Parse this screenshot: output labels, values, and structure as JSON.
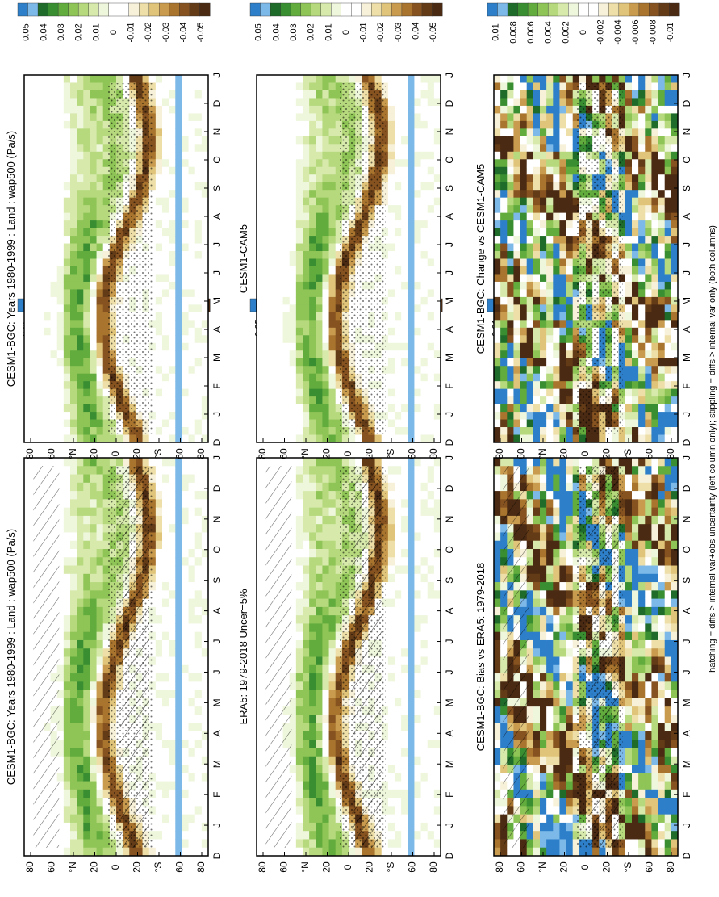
{
  "figure": {
    "footnote": "hatching = diffs > internal var+obs uncertainty (left column only); stippling = diffs > internal var only (both columns)"
  },
  "axes": {
    "months": [
      "D",
      "J",
      "F",
      "M",
      "A",
      "M",
      "J",
      "J",
      "A",
      "S",
      "O",
      "N",
      "D",
      "J"
    ],
    "lat_ticks": [
      "80",
      "60",
      "°N",
      "20",
      "0",
      "20",
      "°S",
      "60",
      "80"
    ]
  },
  "colorbars": {
    "field": [
      "0.05",
      "0.04",
      "0.03",
      "0.02",
      "0.01",
      "0",
      "-0.01",
      "-0.02",
      "-0.03",
      "-0.04",
      "-0.05"
    ],
    "diff": [
      "0.01",
      "0.008",
      "0.006",
      "0.004",
      "0.002",
      "0",
      "-0.002",
      "-0.004",
      "-0.006",
      "-0.008",
      "-0.01"
    ],
    "colors": [
      "#2E7FC9",
      "#7CB8E8",
      "#1E6B2A",
      "#3A8E32",
      "#62AC3E",
      "#8FC457",
      "#B6D97E",
      "#D7EAAC",
      "#EEF6DC",
      "#FFFFFF",
      "#FFFFFF",
      "#F7F1D9",
      "#EEDFA8",
      "#E0C47A",
      "#C89B4E",
      "#A8742E",
      "#855220",
      "#633B17",
      "#4A2A12"
    ]
  },
  "panels": [
    {
      "id": "tl",
      "title": "CESM1-BGC: Years 1980-1999 : Land : wap500 (Pa/s)",
      "kind": "field",
      "hatch": true
    },
    {
      "id": "tr",
      "title": "CESM1-BGC: Years 1980-1999 : Land : wap500 (Pa/s)",
      "kind": "field",
      "hatch": false
    },
    {
      "id": "ml",
      "title": "ERA5: 1979-2018 Uncer=5%",
      "kind": "field",
      "hatch": true
    },
    {
      "id": "mr",
      "title": "CESM1-CAM5",
      "kind": "field",
      "hatch": false
    },
    {
      "id": "bl",
      "title": "CESM1-BGC: Bias vs ERA5: 1979-2018",
      "kind": "diff",
      "hatch": true
    },
    {
      "id": "br",
      "title": "CESM1-BGC: Change vs CESM1-CAM5",
      "kind": "diff",
      "hatch": false
    }
  ],
  "chart_data": [
    {
      "type": "heatmap",
      "title": "CESM1-BGC: Years 1980-1999 : Land : wap500 (Pa/s)",
      "x": [
        "D",
        "J",
        "F",
        "M",
        "A",
        "M",
        "J",
        "J",
        "A",
        "S",
        "O",
        "N",
        "D",
        "J"
      ],
      "y_ticks": [
        "80",
        "60",
        "°N",
        "20",
        "0",
        "20",
        "°S",
        "60",
        "80"
      ],
      "colorbar": [
        0.05,
        0.04,
        0.03,
        0.02,
        0.01,
        0,
        -0.01,
        -0.02,
        -0.03,
        -0.04,
        -0.05
      ]
    },
    {
      "type": "heatmap",
      "title": "CESM1-BGC: Years 1980-1999 : Land : wap500 (Pa/s)",
      "x": [
        "D",
        "J",
        "F",
        "M",
        "A",
        "M",
        "J",
        "J",
        "A",
        "S",
        "O",
        "N",
        "D",
        "J"
      ],
      "y_ticks": [
        "80",
        "60",
        "°N",
        "20",
        "0",
        "20",
        "°S",
        "60",
        "80"
      ],
      "colorbar": [
        0.05,
        0.04,
        0.03,
        0.02,
        0.01,
        0,
        -0.01,
        -0.02,
        -0.03,
        -0.04,
        -0.05
      ]
    },
    {
      "type": "heatmap",
      "title": "ERA5: 1979-2018 Uncer=5%",
      "x": [
        "D",
        "J",
        "F",
        "M",
        "A",
        "M",
        "J",
        "J",
        "A",
        "S",
        "O",
        "N",
        "D",
        "J"
      ],
      "y_ticks": [
        "80",
        "60",
        "°N",
        "20",
        "0",
        "20",
        "°S",
        "60",
        "80"
      ],
      "colorbar": [
        0.05,
        0.04,
        0.03,
        0.02,
        0.01,
        0,
        -0.01,
        -0.02,
        -0.03,
        -0.04,
        -0.05
      ]
    },
    {
      "type": "heatmap",
      "title": "CESM1-CAM5",
      "x": [
        "D",
        "J",
        "F",
        "M",
        "A",
        "M",
        "J",
        "J",
        "A",
        "S",
        "O",
        "N",
        "D",
        "J"
      ],
      "y_ticks": [
        "80",
        "60",
        "°N",
        "20",
        "0",
        "20",
        "°S",
        "60",
        "80"
      ],
      "colorbar": [
        0.05,
        0.04,
        0.03,
        0.02,
        0.01,
        0,
        -0.01,
        -0.02,
        -0.03,
        -0.04,
        -0.05
      ]
    },
    {
      "type": "heatmap",
      "title": "CESM1-BGC: Bias vs ERA5: 1979-2018",
      "x": [
        "D",
        "J",
        "F",
        "M",
        "A",
        "M",
        "J",
        "J",
        "A",
        "S",
        "O",
        "N",
        "D",
        "J"
      ],
      "y_ticks": [
        "80",
        "60",
        "°N",
        "20",
        "0",
        "20",
        "°S",
        "60",
        "80"
      ],
      "colorbar": [
        0.01,
        0.008,
        0.006,
        0.004,
        0.002,
        0,
        -0.002,
        -0.004,
        -0.006,
        -0.008,
        -0.01
      ]
    },
    {
      "type": "heatmap",
      "title": "CESM1-BGC: Change vs CESM1-CAM5",
      "x": [
        "D",
        "J",
        "F",
        "M",
        "A",
        "M",
        "J",
        "J",
        "A",
        "S",
        "O",
        "N",
        "D",
        "J"
      ],
      "y_ticks": [
        "80",
        "60",
        "°N",
        "20",
        "0",
        "20",
        "°S",
        "60",
        "80"
      ],
      "colorbar": [
        0.01,
        0.008,
        0.006,
        0.004,
        0.002,
        0,
        -0.002,
        -0.004,
        -0.006,
        -0.008,
        -0.01
      ]
    }
  ]
}
